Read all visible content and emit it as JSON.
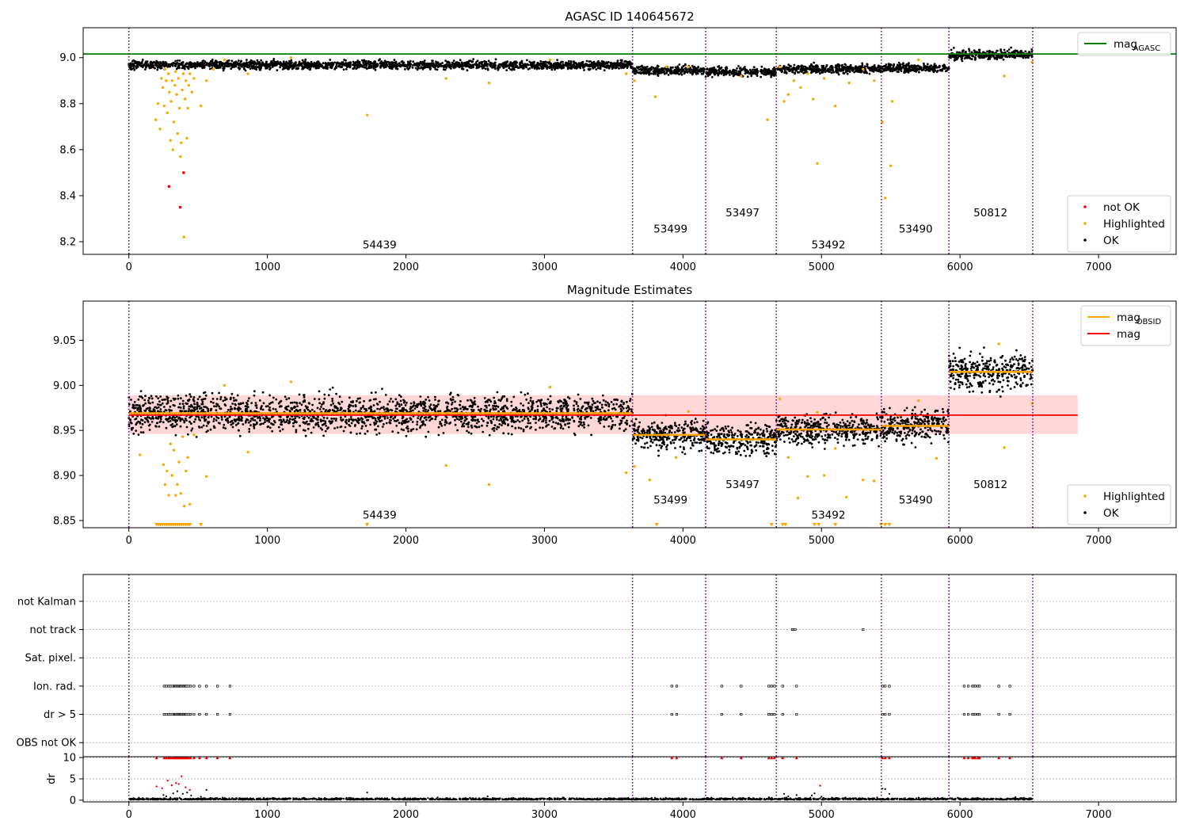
{
  "colors": {
    "ok": "#000000",
    "highlighted": "#ffa500",
    "not_ok": "#ff0000",
    "mag_agasc": "#008000",
    "mag_obsid": "#ffa500",
    "mag": "#ff0000",
    "band": "#ffd7d7",
    "obs_boundary": "#800080",
    "grid": "#b0b0b0"
  },
  "chart_data": [
    {
      "id": "agasc",
      "type": "scatter",
      "title": "AGASC ID 140645672",
      "xlim": [
        -330,
        7560
      ],
      "ylim": [
        8.145,
        9.13
      ],
      "xticks": [
        0,
        1000,
        2000,
        3000,
        4000,
        5000,
        6000,
        7000
      ],
      "xtick_labels": [
        "0",
        "1000",
        "2000",
        "3000",
        "4000",
        "5000",
        "6000",
        "7000"
      ],
      "yticks": [
        8.2,
        8.4,
        8.6,
        8.8,
        9.0
      ],
      "ytick_labels": [
        "8.2",
        "8.4",
        "8.6",
        "8.8",
        "9.0"
      ],
      "obs_boundaries": [
        0,
        3636,
        4164,
        4674,
        5432,
        5920,
        6525
      ],
      "obs_labels": [
        {
          "text": "54439",
          "x": 1810,
          "y": 8.17
        },
        {
          "text": "53499",
          "x": 3910,
          "y": 8.24
        },
        {
          "text": "53497",
          "x": 4430,
          "y": 8.31
        },
        {
          "text": "53492",
          "x": 5050,
          "y": 8.17
        },
        {
          "text": "53490",
          "x": 5680,
          "y": 8.24
        },
        {
          "text": "50812",
          "x": 6220,
          "y": 8.31
        }
      ],
      "ref_line": {
        "name_main": "mag",
        "name_sub": "AGASC",
        "y": 9.016,
        "x": [
          -330,
          7560
        ]
      },
      "segments": [
        {
          "x0": 0,
          "x1": 3636,
          "mean": 8.968,
          "spread": 0.009
        },
        {
          "x0": 3636,
          "x1": 4164,
          "mean": 8.945,
          "spread": 0.009
        },
        {
          "x0": 4164,
          "x1": 4674,
          "mean": 8.938,
          "spread": 0.01
        },
        {
          "x0": 4674,
          "x1": 5432,
          "mean": 8.951,
          "spread": 0.009
        },
        {
          "x0": 5432,
          "x1": 5920,
          "mean": 8.955,
          "spread": 0.009
        },
        {
          "x0": 5920,
          "x1": 6525,
          "mean": 9.013,
          "spread": 0.01
        }
      ],
      "highlighted_points": [
        [
          195,
          8.73
        ],
        [
          210,
          8.8
        ],
        [
          225,
          8.69
        ],
        [
          235,
          8.91
        ],
        [
          245,
          8.87
        ],
        [
          255,
          8.79
        ],
        [
          262,
          8.95
        ],
        [
          270,
          8.9
        ],
        [
          278,
          8.76
        ],
        [
          285,
          8.93
        ],
        [
          292,
          8.85
        ],
        [
          300,
          8.64
        ],
        [
          305,
          8.81
        ],
        [
          312,
          8.9
        ],
        [
          318,
          8.6
        ],
        [
          325,
          8.72
        ],
        [
          332,
          8.88
        ],
        [
          338,
          8.94
        ],
        [
          345,
          8.84
        ],
        [
          352,
          8.67
        ],
        [
          358,
          8.91
        ],
        [
          365,
          8.78
        ],
        [
          372,
          8.57
        ],
        [
          378,
          8.63
        ],
        [
          385,
          8.86
        ],
        [
          392,
          8.93
        ],
        [
          398,
          8.22
        ],
        [
          405,
          8.82
        ],
        [
          412,
          8.9
        ],
        [
          418,
          8.65
        ],
        [
          425,
          8.78
        ],
        [
          432,
          8.88
        ],
        [
          440,
          8.93
        ],
        [
          455,
          8.85
        ],
        [
          470,
          8.91
        ],
        [
          520,
          8.79
        ],
        [
          560,
          8.9
        ],
        [
          610,
          8.95
        ],
        [
          690,
          8.99
        ],
        [
          860,
          8.93
        ],
        [
          1170,
          9.0
        ],
        [
          1720,
          8.75
        ],
        [
          2290,
          8.91
        ],
        [
          2600,
          8.89
        ],
        [
          3040,
          8.99
        ],
        [
          3590,
          8.93
        ],
        [
          3650,
          8.9
        ],
        [
          3800,
          8.83
        ],
        [
          3880,
          8.96
        ],
        [
          4040,
          8.96
        ],
        [
          4420,
          8.92
        ],
        [
          4610,
          8.73
        ],
        [
          4700,
          8.96
        ],
        [
          4730,
          8.81
        ],
        [
          4760,
          8.84
        ],
        [
          4800,
          8.9
        ],
        [
          4850,
          8.87
        ],
        [
          4900,
          8.93
        ],
        [
          4940,
          8.82
        ],
        [
          4970,
          8.54
        ],
        [
          5020,
          8.91
        ],
        [
          5100,
          8.79
        ],
        [
          5200,
          8.89
        ],
        [
          5300,
          8.95
        ],
        [
          5380,
          8.9
        ],
        [
          5440,
          8.72
        ],
        [
          5460,
          8.39
        ],
        [
          5500,
          8.53
        ],
        [
          5510,
          8.81
        ],
        [
          5700,
          8.99
        ],
        [
          6320,
          8.92
        ],
        [
          6520,
          8.98
        ]
      ],
      "not_ok_points": [
        [
          290,
          8.44
        ],
        [
          370,
          8.35
        ],
        [
          395,
          8.5
        ]
      ],
      "legend_upper": [
        {
          "label": "mag",
          "sub": "AGASC",
          "kind": "line",
          "color": "#008000"
        }
      ],
      "legend_lower": [
        {
          "label": "not OK",
          "kind": "dot",
          "color": "#ff0000"
        },
        {
          "label": "Highlighted",
          "kind": "dot",
          "color": "#ffa500"
        },
        {
          "label": "OK",
          "kind": "dot",
          "color": "#000000"
        }
      ]
    },
    {
      "id": "estimates",
      "type": "scatter",
      "title": "Magnitude Estimates",
      "xlim": [
        -330,
        7560
      ],
      "ylim": [
        8.842,
        9.0935
      ],
      "xticks": [
        0,
        1000,
        2000,
        3000,
        4000,
        5000,
        6000,
        7000
      ],
      "xtick_labels": [
        "0",
        "1000",
        "2000",
        "3000",
        "4000",
        "5000",
        "6000",
        "7000"
      ],
      "yticks": [
        8.85,
        8.9,
        8.95,
        9.0,
        9.05
      ],
      "ytick_labels": [
        "8.85",
        "8.90",
        "8.95",
        "9.00",
        "9.05"
      ],
      "obs_boundaries": [
        0,
        3636,
        4164,
        4674,
        5432,
        5920,
        6525
      ],
      "obs_labels": [
        {
          "text": "54439",
          "x": 1810,
          "y": 8.852
        },
        {
          "text": "53499",
          "x": 3910,
          "y": 8.869
        },
        {
          "text": "53497",
          "x": 4430,
          "y": 8.886
        },
        {
          "text": "53492",
          "x": 5050,
          "y": 8.852
        },
        {
          "text": "53490",
          "x": 5680,
          "y": 8.869
        },
        {
          "text": "50812",
          "x": 6220,
          "y": 8.886
        }
      ],
      "mag_line": {
        "y": 8.967,
        "x": [
          0,
          6850
        ]
      },
      "mag_band": {
        "y_low": 8.946,
        "y_high": 8.989,
        "x": [
          0,
          6850
        ]
      },
      "segments": [
        {
          "x0": 0,
          "x1": 3636,
          "mean": 8.969,
          "spread": 0.01
        },
        {
          "x0": 3636,
          "x1": 4164,
          "mean": 8.945,
          "spread": 0.008
        },
        {
          "x0": 4164,
          "x1": 4674,
          "mean": 8.94,
          "spread": 0.009
        },
        {
          "x0": 4674,
          "x1": 5432,
          "mean": 8.951,
          "spread": 0.008
        },
        {
          "x0": 5432,
          "x1": 5920,
          "mean": 8.955,
          "spread": 0.009
        },
        {
          "x0": 5920,
          "x1": 6525,
          "mean": 9.015,
          "spread": 0.01
        }
      ],
      "highlighted_points": [
        [
          80,
          8.923
        ],
        [
          250,
          8.912
        ],
        [
          262,
          8.89
        ],
        [
          275,
          8.905
        ],
        [
          288,
          8.878
        ],
        [
          300,
          8.935
        ],
        [
          312,
          8.9
        ],
        [
          325,
          8.928
        ],
        [
          338,
          8.878
        ],
        [
          350,
          8.89
        ],
        [
          362,
          8.915
        ],
        [
          375,
          8.88
        ],
        [
          388,
          8.943
        ],
        [
          400,
          8.866
        ],
        [
          412,
          8.905
        ],
        [
          425,
          8.92
        ],
        [
          440,
          8.868
        ],
        [
          470,
          8.945
        ],
        [
          560,
          8.899
        ],
        [
          690,
          9.0
        ],
        [
          860,
          8.926
        ],
        [
          1170,
          9.004
        ],
        [
          2290,
          8.911
        ],
        [
          2600,
          8.89
        ],
        [
          3040,
          8.998
        ],
        [
          3590,
          8.903
        ],
        [
          3650,
          8.91
        ],
        [
          3760,
          8.895
        ],
        [
          3950,
          8.92
        ],
        [
          4040,
          8.971
        ],
        [
          4700,
          8.985
        ],
        [
          4760,
          8.92
        ],
        [
          4830,
          8.875
        ],
        [
          4900,
          8.899
        ],
        [
          4970,
          8.97
        ],
        [
          5020,
          8.9
        ],
        [
          5100,
          8.93
        ],
        [
          5180,
          8.876
        ],
        [
          5300,
          8.895
        ],
        [
          5380,
          8.894
        ],
        [
          5560,
          8.966
        ],
        [
          5700,
          8.983
        ],
        [
          5830,
          8.919
        ],
        [
          6280,
          9.046
        ],
        [
          6320,
          8.931
        ],
        [
          6520,
          8.98
        ]
      ],
      "clipped_points_x": [
        200,
        215,
        230,
        245,
        260,
        275,
        290,
        305,
        320,
        335,
        350,
        365,
        380,
        395,
        410,
        425,
        440,
        520,
        1720,
        3810,
        4640,
        4720,
        4740,
        4950,
        4980,
        5100,
        5430,
        5460,
        5490
      ],
      "legend_upper": [
        {
          "label": "mag",
          "sub": "OBSID",
          "kind": "line",
          "color": "#ffa500"
        },
        {
          "label": "mag",
          "sub": "",
          "kind": "line",
          "color": "#ff0000"
        }
      ],
      "legend_lower": [
        {
          "label": "Highlighted",
          "kind": "dot",
          "color": "#ffa500"
        },
        {
          "label": "OK",
          "kind": "dot",
          "color": "#000000"
        }
      ]
    },
    {
      "id": "flags",
      "type": "scatter",
      "xlim": [
        -330,
        7560
      ],
      "ylim": [
        -0.5,
        5.95
      ],
      "categories": [
        "OBS not OK",
        "dr > 5",
        "Ion. rad.",
        "Sat. pixel.",
        "not track",
        "not Kalman"
      ],
      "obs_boundaries": [
        0,
        3636,
        4164,
        4674,
        5432,
        5920,
        6525
      ],
      "flag_x": [
        255,
        270,
        285,
        298,
        312,
        325,
        332,
        338,
        345,
        352,
        358,
        365,
        372,
        378,
        385,
        392,
        398,
        405,
        412,
        420,
        432,
        445,
        470,
        510,
        560,
        640,
        730,
        3920,
        3955,
        4280,
        4420,
        4620,
        4640,
        4660,
        4720,
        4820,
        5440,
        5460,
        5490,
        6030,
        6060,
        6090,
        6100,
        6110,
        6130,
        6140,
        6280,
        6360
      ],
      "not_track_x": [
        4790,
        4800,
        4810,
        5300
      ]
    },
    {
      "id": "dr",
      "type": "scatter",
      "ylabel": "dr",
      "xlim": [
        -330,
        7560
      ],
      "ylim": [
        -0.4,
        10.2
      ],
      "xticks": [
        0,
        1000,
        2000,
        3000,
        4000,
        5000,
        6000,
        7000
      ],
      "xtick_labels": [
        "0",
        "1000",
        "2000",
        "3000",
        "4000",
        "5000",
        "6000",
        "7000"
      ],
      "yticks": [
        0,
        5,
        10
      ],
      "ytick_labels": [
        "0",
        "5",
        "10"
      ],
      "obs_boundaries": [
        0,
        3636,
        4164,
        4674,
        5432,
        5920,
        6525
      ],
      "capped_value": 10,
      "capped_x": [
        200,
        255,
        270,
        285,
        298,
        312,
        325,
        332,
        338,
        345,
        352,
        358,
        365,
        372,
        378,
        385,
        392,
        398,
        405,
        412,
        420,
        432,
        445,
        470,
        510,
        560,
        640,
        730,
        3920,
        3955,
        4280,
        4420,
        4620,
        4640,
        4660,
        4720,
        4820,
        5440,
        5460,
        5490,
        6030,
        6060,
        6090,
        6100,
        6110,
        6130,
        6140,
        6280,
        6360
      ],
      "red_points": [
        [
          200,
          3.2
        ],
        [
          240,
          2.8
        ],
        [
          280,
          4.6
        ],
        [
          310,
          3.5
        ],
        [
          340,
          4.0
        ],
        [
          360,
          3.8
        ],
        [
          380,
          5.6
        ],
        [
          410,
          3.0
        ],
        [
          440,
          2.4
        ],
        [
          4990,
          3.4
        ]
      ],
      "black_points": [
        [
          250,
          1.2
        ],
        [
          270,
          0.9
        ],
        [
          300,
          0.6
        ],
        [
          320,
          1.6
        ],
        [
          350,
          2.1
        ],
        [
          390,
          1.5
        ],
        [
          420,
          1.8
        ],
        [
          450,
          1.1
        ],
        [
          520,
          0.8
        ],
        [
          560,
          2.4
        ],
        [
          1720,
          1.8
        ],
        [
          2590,
          0.9
        ],
        [
          4620,
          0.7
        ],
        [
          4730,
          1.5
        ],
        [
          4760,
          0.9
        ],
        [
          4820,
          1.2
        ],
        [
          4930,
          1.1
        ],
        [
          4950,
          1.6
        ],
        [
          5000,
          0.8
        ],
        [
          5440,
          2.7
        ],
        [
          5460,
          2.6
        ],
        [
          5490,
          1.5
        ],
        [
          5700,
          0.6
        ],
        [
          6400,
          0.7
        ]
      ],
      "baseline_segments": [
        [
          0,
          3636
        ],
        [
          3636,
          4164
        ],
        [
          4164,
          4674
        ],
        [
          4674,
          5432
        ],
        [
          5432,
          5920
        ],
        [
          5920,
          6525
        ]
      ]
    }
  ]
}
